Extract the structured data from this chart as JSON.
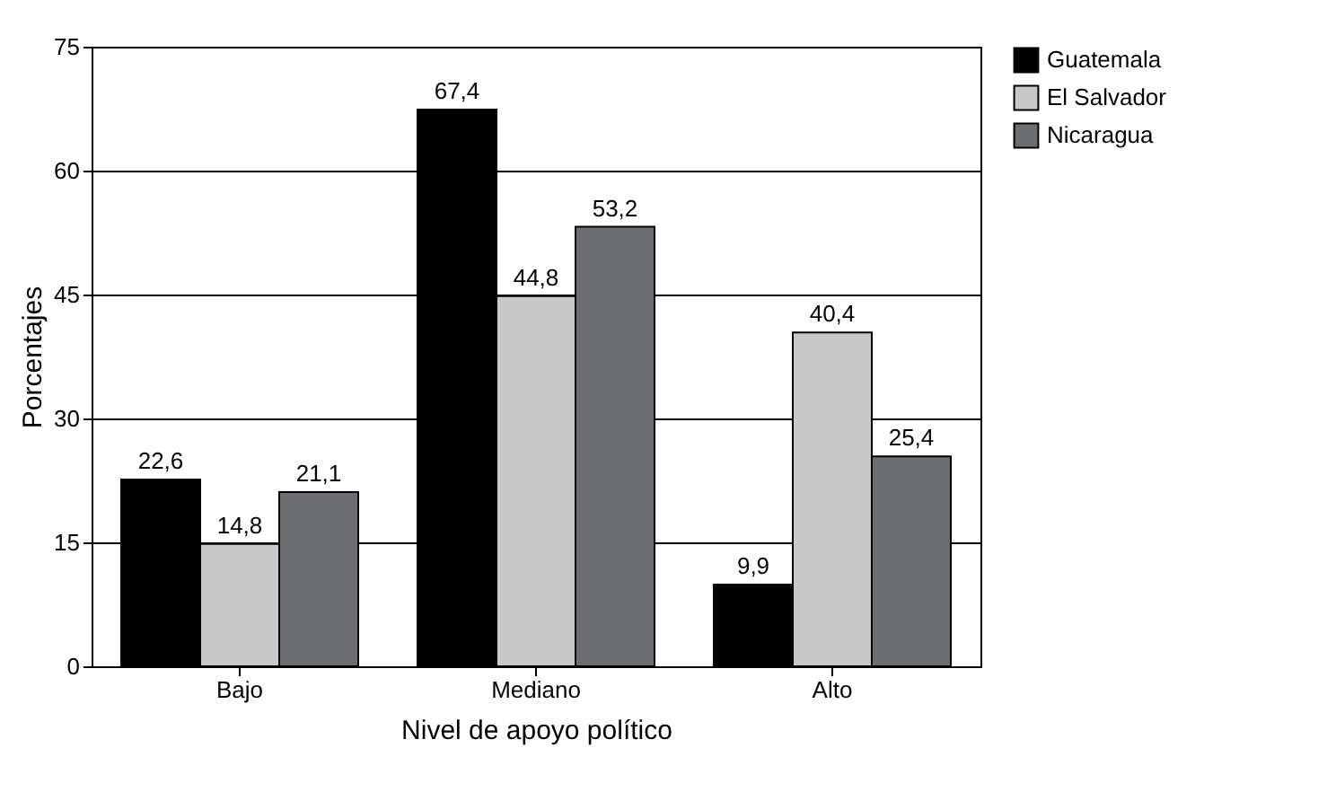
{
  "chart_data": {
    "type": "bar",
    "xlabel": "Nivel de apoyo político",
    "ylabel": "Porcentajes",
    "categories": [
      "Bajo",
      "Mediano",
      "Alto"
    ],
    "series": [
      {
        "name": "Guatemala",
        "color": "#000000",
        "values": [
          22.6,
          67.4,
          9.9
        ],
        "value_labels": [
          "22,6",
          "67,4",
          "9,9"
        ]
      },
      {
        "name": "El Salvador",
        "color": "#c8c8c8",
        "values": [
          14.8,
          44.8,
          40.4
        ],
        "value_labels": [
          "14,8",
          "44,8",
          "40,4"
        ]
      },
      {
        "name": "Nicaragua",
        "color": "#6d6e71",
        "values": [
          21.1,
          53.2,
          25.4
        ],
        "value_labels": [
          "21,1",
          "53,2",
          "25,4"
        ]
      }
    ],
    "ylim": [
      0,
      75
    ],
    "yticks": [
      0,
      15,
      30,
      45,
      60,
      75
    ],
    "grid": "y",
    "legend": "right"
  }
}
